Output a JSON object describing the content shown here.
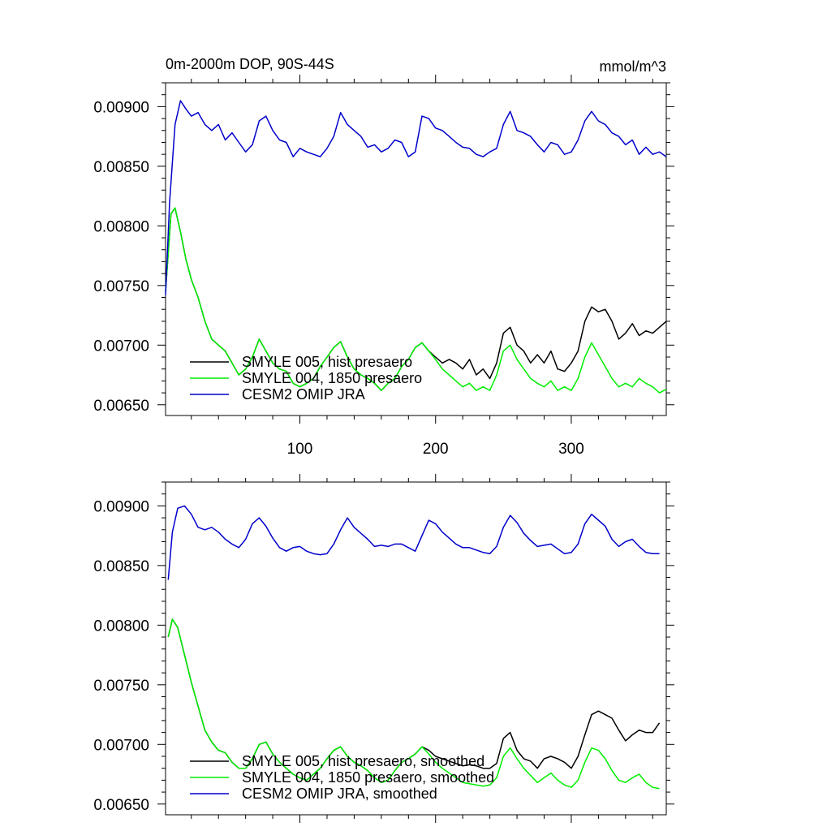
{
  "chart_data": [
    {
      "type": "line",
      "title": "0m-2000m DOP, 90S-44S",
      "units": "mmol/m^3",
      "xlim": [
        1,
        370
      ],
      "ylim": [
        0.00641,
        0.0092
      ],
      "xticks": [
        100,
        200,
        300
      ],
      "yticks": [
        0.0065,
        0.007,
        0.0075,
        0.008,
        0.0085,
        0.009
      ],
      "ytick_labels": [
        "0.00650",
        "0.00700",
        "0.00750",
        "0.00800",
        "0.00850",
        "0.00900"
      ],
      "show_x_tick_labels": true,
      "grid": false,
      "legend_position": "lower-left",
      "series": [
        {
          "name": "SMYLE 005, hist presaero",
          "color": "#000000",
          "x": [
            1,
            5,
            8,
            12,
            16,
            20,
            25,
            30,
            35,
            40,
            45,
            50,
            55,
            60,
            65,
            70,
            75,
            80,
            85,
            90,
            95,
            100,
            105,
            110,
            115,
            120,
            125,
            130,
            135,
            140,
            145,
            150,
            155,
            160,
            165,
            170,
            175,
            180,
            185,
            190,
            195,
            200,
            205,
            210,
            215,
            220,
            225,
            230,
            235,
            240,
            245,
            250,
            255,
            260,
            265,
            270,
            275,
            280,
            285,
            290,
            295,
            300,
            305,
            310,
            315,
            320,
            325,
            330,
            335,
            340,
            345,
            350,
            355,
            360,
            365,
            370
          ],
          "values": [
            0.00745,
            0.0081,
            0.00815,
            0.00795,
            0.00772,
            0.00755,
            0.0074,
            0.0072,
            0.00705,
            0.007,
            0.00695,
            0.00685,
            0.00675,
            0.0068,
            0.0069,
            0.00705,
            0.00695,
            0.00685,
            0.0068,
            0.00678,
            0.00668,
            0.00665,
            0.00668,
            0.00672,
            0.00682,
            0.0069,
            0.00698,
            0.00703,
            0.0069,
            0.0068,
            0.00675,
            0.00672,
            0.00668,
            0.00662,
            0.00668,
            0.00672,
            0.00682,
            0.00688,
            0.00698,
            0.00702,
            0.00695,
            0.0069,
            0.00685,
            0.00688,
            0.00685,
            0.0068,
            0.00688,
            0.00675,
            0.0068,
            0.00672,
            0.00685,
            0.0071,
            0.00715,
            0.007,
            0.00695,
            0.00685,
            0.00692,
            0.00685,
            0.00695,
            0.0068,
            0.00678,
            0.00685,
            0.00695,
            0.0072,
            0.00732,
            0.00728,
            0.0073,
            0.0072,
            0.00705,
            0.0071,
            0.00718,
            0.00708,
            0.00712,
            0.0071,
            0.00715,
            0.0072
          ]
        },
        {
          "name": "SMYLE 004, 1850 presaero",
          "color": "#00ee00",
          "x": [
            1,
            5,
            8,
            12,
            16,
            20,
            25,
            30,
            35,
            40,
            45,
            50,
            55,
            60,
            65,
            70,
            75,
            80,
            85,
            90,
            95,
            100,
            105,
            110,
            115,
            120,
            125,
            130,
            135,
            140,
            145,
            150,
            155,
            160,
            165,
            170,
            175,
            180,
            185,
            190,
            195,
            200,
            205,
            210,
            215,
            220,
            225,
            230,
            235,
            240,
            245,
            250,
            255,
            260,
            265,
            270,
            275,
            280,
            285,
            290,
            295,
            300,
            305,
            310,
            315,
            320,
            325,
            330,
            335,
            340,
            345,
            350,
            355,
            360,
            365,
            370
          ],
          "values": [
            0.00745,
            0.0081,
            0.00815,
            0.00795,
            0.00772,
            0.00755,
            0.0074,
            0.0072,
            0.00705,
            0.007,
            0.00695,
            0.00685,
            0.00675,
            0.0068,
            0.0069,
            0.00705,
            0.00695,
            0.00685,
            0.0068,
            0.00678,
            0.00668,
            0.00665,
            0.00668,
            0.00672,
            0.00682,
            0.0069,
            0.00698,
            0.00703,
            0.0069,
            0.0068,
            0.00675,
            0.00672,
            0.00668,
            0.00662,
            0.00668,
            0.00672,
            0.00682,
            0.00688,
            0.00698,
            0.00702,
            0.00695,
            0.00688,
            0.0068,
            0.00675,
            0.0067,
            0.00665,
            0.00668,
            0.00662,
            0.00665,
            0.00662,
            0.00675,
            0.00695,
            0.007,
            0.00688,
            0.0068,
            0.00672,
            0.00668,
            0.00665,
            0.0067,
            0.00662,
            0.00665,
            0.00662,
            0.00672,
            0.0069,
            0.00702,
            0.00692,
            0.00682,
            0.00672,
            0.00665,
            0.00668,
            0.00665,
            0.00672,
            0.00668,
            0.00665,
            0.0066,
            0.00663
          ]
        },
        {
          "name": "CESM2 OMIP JRA",
          "color": "#0000cc",
          "x": [
            1,
            4,
            8,
            12,
            16,
            20,
            25,
            30,
            35,
            40,
            45,
            50,
            55,
            60,
            65,
            70,
            75,
            80,
            85,
            90,
            95,
            100,
            105,
            110,
            115,
            120,
            125,
            130,
            135,
            140,
            145,
            150,
            155,
            160,
            165,
            170,
            175,
            180,
            185,
            190,
            195,
            200,
            205,
            210,
            215,
            220,
            225,
            230,
            235,
            240,
            245,
            250,
            255,
            260,
            265,
            270,
            275,
            280,
            285,
            290,
            295,
            300,
            305,
            310,
            315,
            320,
            325,
            330,
            335,
            340,
            345,
            350,
            355,
            360,
            365,
            370
          ],
          "values": [
            0.00742,
            0.0082,
            0.00885,
            0.00905,
            0.00898,
            0.00892,
            0.00895,
            0.00885,
            0.0088,
            0.00885,
            0.00872,
            0.00878,
            0.0087,
            0.00862,
            0.00868,
            0.00888,
            0.00892,
            0.0088,
            0.00872,
            0.0087,
            0.00858,
            0.00865,
            0.00862,
            0.0086,
            0.00858,
            0.00865,
            0.00875,
            0.00895,
            0.00885,
            0.0088,
            0.00875,
            0.00866,
            0.00868,
            0.00862,
            0.00865,
            0.00872,
            0.0087,
            0.00858,
            0.00862,
            0.00892,
            0.0089,
            0.00882,
            0.0088,
            0.00875,
            0.0087,
            0.00866,
            0.00865,
            0.0086,
            0.00858,
            0.00862,
            0.00865,
            0.00885,
            0.00896,
            0.0088,
            0.00878,
            0.00875,
            0.00868,
            0.00862,
            0.0087,
            0.00868,
            0.0086,
            0.00862,
            0.00872,
            0.00888,
            0.00896,
            0.00888,
            0.00885,
            0.00878,
            0.00875,
            0.00868,
            0.00872,
            0.0086,
            0.00866,
            0.0086,
            0.00862,
            0.00858
          ]
        }
      ]
    },
    {
      "type": "line",
      "title": "",
      "units": "",
      "xlim": [
        1,
        370
      ],
      "ylim": [
        0.00641,
        0.0092
      ],
      "xticks": [
        100,
        200,
        300
      ],
      "yticks": [
        0.0065,
        0.007,
        0.0075,
        0.008,
        0.0085,
        0.009
      ],
      "ytick_labels": [
        "0.00650",
        "0.00700",
        "0.00750",
        "0.00800",
        "0.00850",
        "0.00900"
      ],
      "show_x_tick_labels": false,
      "grid": false,
      "legend_position": "lower-left",
      "series": [
        {
          "name": "SMYLE 005, hist presaero, smoothed",
          "color": "#000000",
          "x": [
            3,
            6,
            10,
            15,
            20,
            25,
            30,
            35,
            40,
            45,
            50,
            55,
            60,
            65,
            70,
            75,
            80,
            85,
            90,
            95,
            100,
            105,
            110,
            115,
            120,
            125,
            130,
            135,
            140,
            145,
            150,
            155,
            160,
            165,
            170,
            175,
            180,
            185,
            190,
            195,
            200,
            205,
            210,
            215,
            220,
            225,
            230,
            235,
            240,
            245,
            250,
            255,
            260,
            265,
            270,
            275,
            280,
            285,
            290,
            295,
            300,
            305,
            310,
            315,
            320,
            325,
            330,
            335,
            340,
            345,
            350,
            355,
            360,
            365
          ],
          "values": [
            0.0079,
            0.00805,
            0.00798,
            0.00775,
            0.00752,
            0.00732,
            0.00712,
            0.00702,
            0.00695,
            0.00693,
            0.00685,
            0.0068,
            0.0068,
            0.00688,
            0.007,
            0.00702,
            0.00692,
            0.00685,
            0.0068,
            0.00675,
            0.00672,
            0.0067,
            0.00675,
            0.0068,
            0.00688,
            0.00695,
            0.00698,
            0.0069,
            0.00685,
            0.00682,
            0.00678,
            0.00672,
            0.00668,
            0.0067,
            0.00678,
            0.00685,
            0.00688,
            0.00692,
            0.00698,
            0.00695,
            0.0069,
            0.00688,
            0.00686,
            0.00684,
            0.00682,
            0.00683,
            0.00682,
            0.0068,
            0.0068,
            0.00684,
            0.00705,
            0.0071,
            0.00695,
            0.00688,
            0.00686,
            0.0068,
            0.00688,
            0.0069,
            0.00688,
            0.00685,
            0.0068,
            0.0069,
            0.00708,
            0.00725,
            0.00728,
            0.00725,
            0.00722,
            0.00712,
            0.00703,
            0.00708,
            0.00712,
            0.0071,
            0.0071,
            0.00718
          ]
        },
        {
          "name": "SMYLE 004, 1850 presaero, smoothed",
          "color": "#00ee00",
          "x": [
            3,
            6,
            10,
            15,
            20,
            25,
            30,
            35,
            40,
            45,
            50,
            55,
            60,
            65,
            70,
            75,
            80,
            85,
            90,
            95,
            100,
            105,
            110,
            115,
            120,
            125,
            130,
            135,
            140,
            145,
            150,
            155,
            160,
            165,
            170,
            175,
            180,
            185,
            190,
            195,
            200,
            205,
            210,
            215,
            220,
            225,
            230,
            235,
            240,
            245,
            250,
            255,
            260,
            265,
            270,
            275,
            280,
            285,
            290,
            295,
            300,
            305,
            310,
            315,
            320,
            325,
            330,
            335,
            340,
            345,
            350,
            355,
            360,
            365
          ],
          "values": [
            0.0079,
            0.00805,
            0.00798,
            0.00775,
            0.00752,
            0.00732,
            0.00712,
            0.00702,
            0.00695,
            0.00693,
            0.00685,
            0.0068,
            0.0068,
            0.00688,
            0.007,
            0.00702,
            0.00692,
            0.00685,
            0.0068,
            0.00675,
            0.00672,
            0.0067,
            0.00675,
            0.0068,
            0.00688,
            0.00695,
            0.00698,
            0.0069,
            0.00685,
            0.00682,
            0.00678,
            0.00672,
            0.00668,
            0.0067,
            0.00678,
            0.00685,
            0.00688,
            0.00692,
            0.00698,
            0.00692,
            0.00685,
            0.0068,
            0.00676,
            0.00672,
            0.00668,
            0.00667,
            0.00666,
            0.00665,
            0.00666,
            0.00672,
            0.0069,
            0.00697,
            0.00688,
            0.0068,
            0.00674,
            0.00668,
            0.00672,
            0.00676,
            0.0067,
            0.00666,
            0.00664,
            0.0067,
            0.00685,
            0.00697,
            0.00695,
            0.00688,
            0.00678,
            0.0067,
            0.00668,
            0.00672,
            0.00675,
            0.00668,
            0.00664,
            0.00663
          ]
        },
        {
          "name": "CESM2 OMIP JRA, smoothed",
          "color": "#0000cc",
          "x": [
            3,
            6,
            10,
            15,
            20,
            25,
            30,
            35,
            40,
            45,
            50,
            55,
            60,
            65,
            70,
            75,
            80,
            85,
            90,
            95,
            100,
            105,
            110,
            115,
            120,
            125,
            130,
            135,
            140,
            145,
            150,
            155,
            160,
            165,
            170,
            175,
            180,
            185,
            190,
            195,
            200,
            205,
            210,
            215,
            220,
            225,
            230,
            235,
            240,
            245,
            250,
            255,
            260,
            265,
            270,
            275,
            280,
            285,
            290,
            295,
            300,
            305,
            310,
            315,
            320,
            325,
            330,
            335,
            340,
            345,
            350,
            355,
            360,
            365
          ],
          "values": [
            0.00838,
            0.00878,
            0.00898,
            0.009,
            0.00893,
            0.00882,
            0.0088,
            0.00882,
            0.00878,
            0.00872,
            0.00868,
            0.00865,
            0.00872,
            0.00885,
            0.0089,
            0.00883,
            0.00873,
            0.00865,
            0.00862,
            0.00865,
            0.00866,
            0.00862,
            0.0086,
            0.00859,
            0.0086,
            0.00868,
            0.0088,
            0.0089,
            0.00882,
            0.00877,
            0.00872,
            0.00866,
            0.00867,
            0.00866,
            0.00868,
            0.00868,
            0.00865,
            0.00862,
            0.00875,
            0.00888,
            0.00885,
            0.00878,
            0.00873,
            0.00868,
            0.00865,
            0.00865,
            0.00863,
            0.00861,
            0.0086,
            0.00866,
            0.00882,
            0.00892,
            0.00886,
            0.00877,
            0.00871,
            0.00866,
            0.00867,
            0.00868,
            0.00864,
            0.0086,
            0.00861,
            0.00868,
            0.00885,
            0.00893,
            0.00888,
            0.00883,
            0.00872,
            0.00866,
            0.0087,
            0.00872,
            0.00866,
            0.00861,
            0.0086,
            0.0086
          ]
        }
      ]
    }
  ]
}
